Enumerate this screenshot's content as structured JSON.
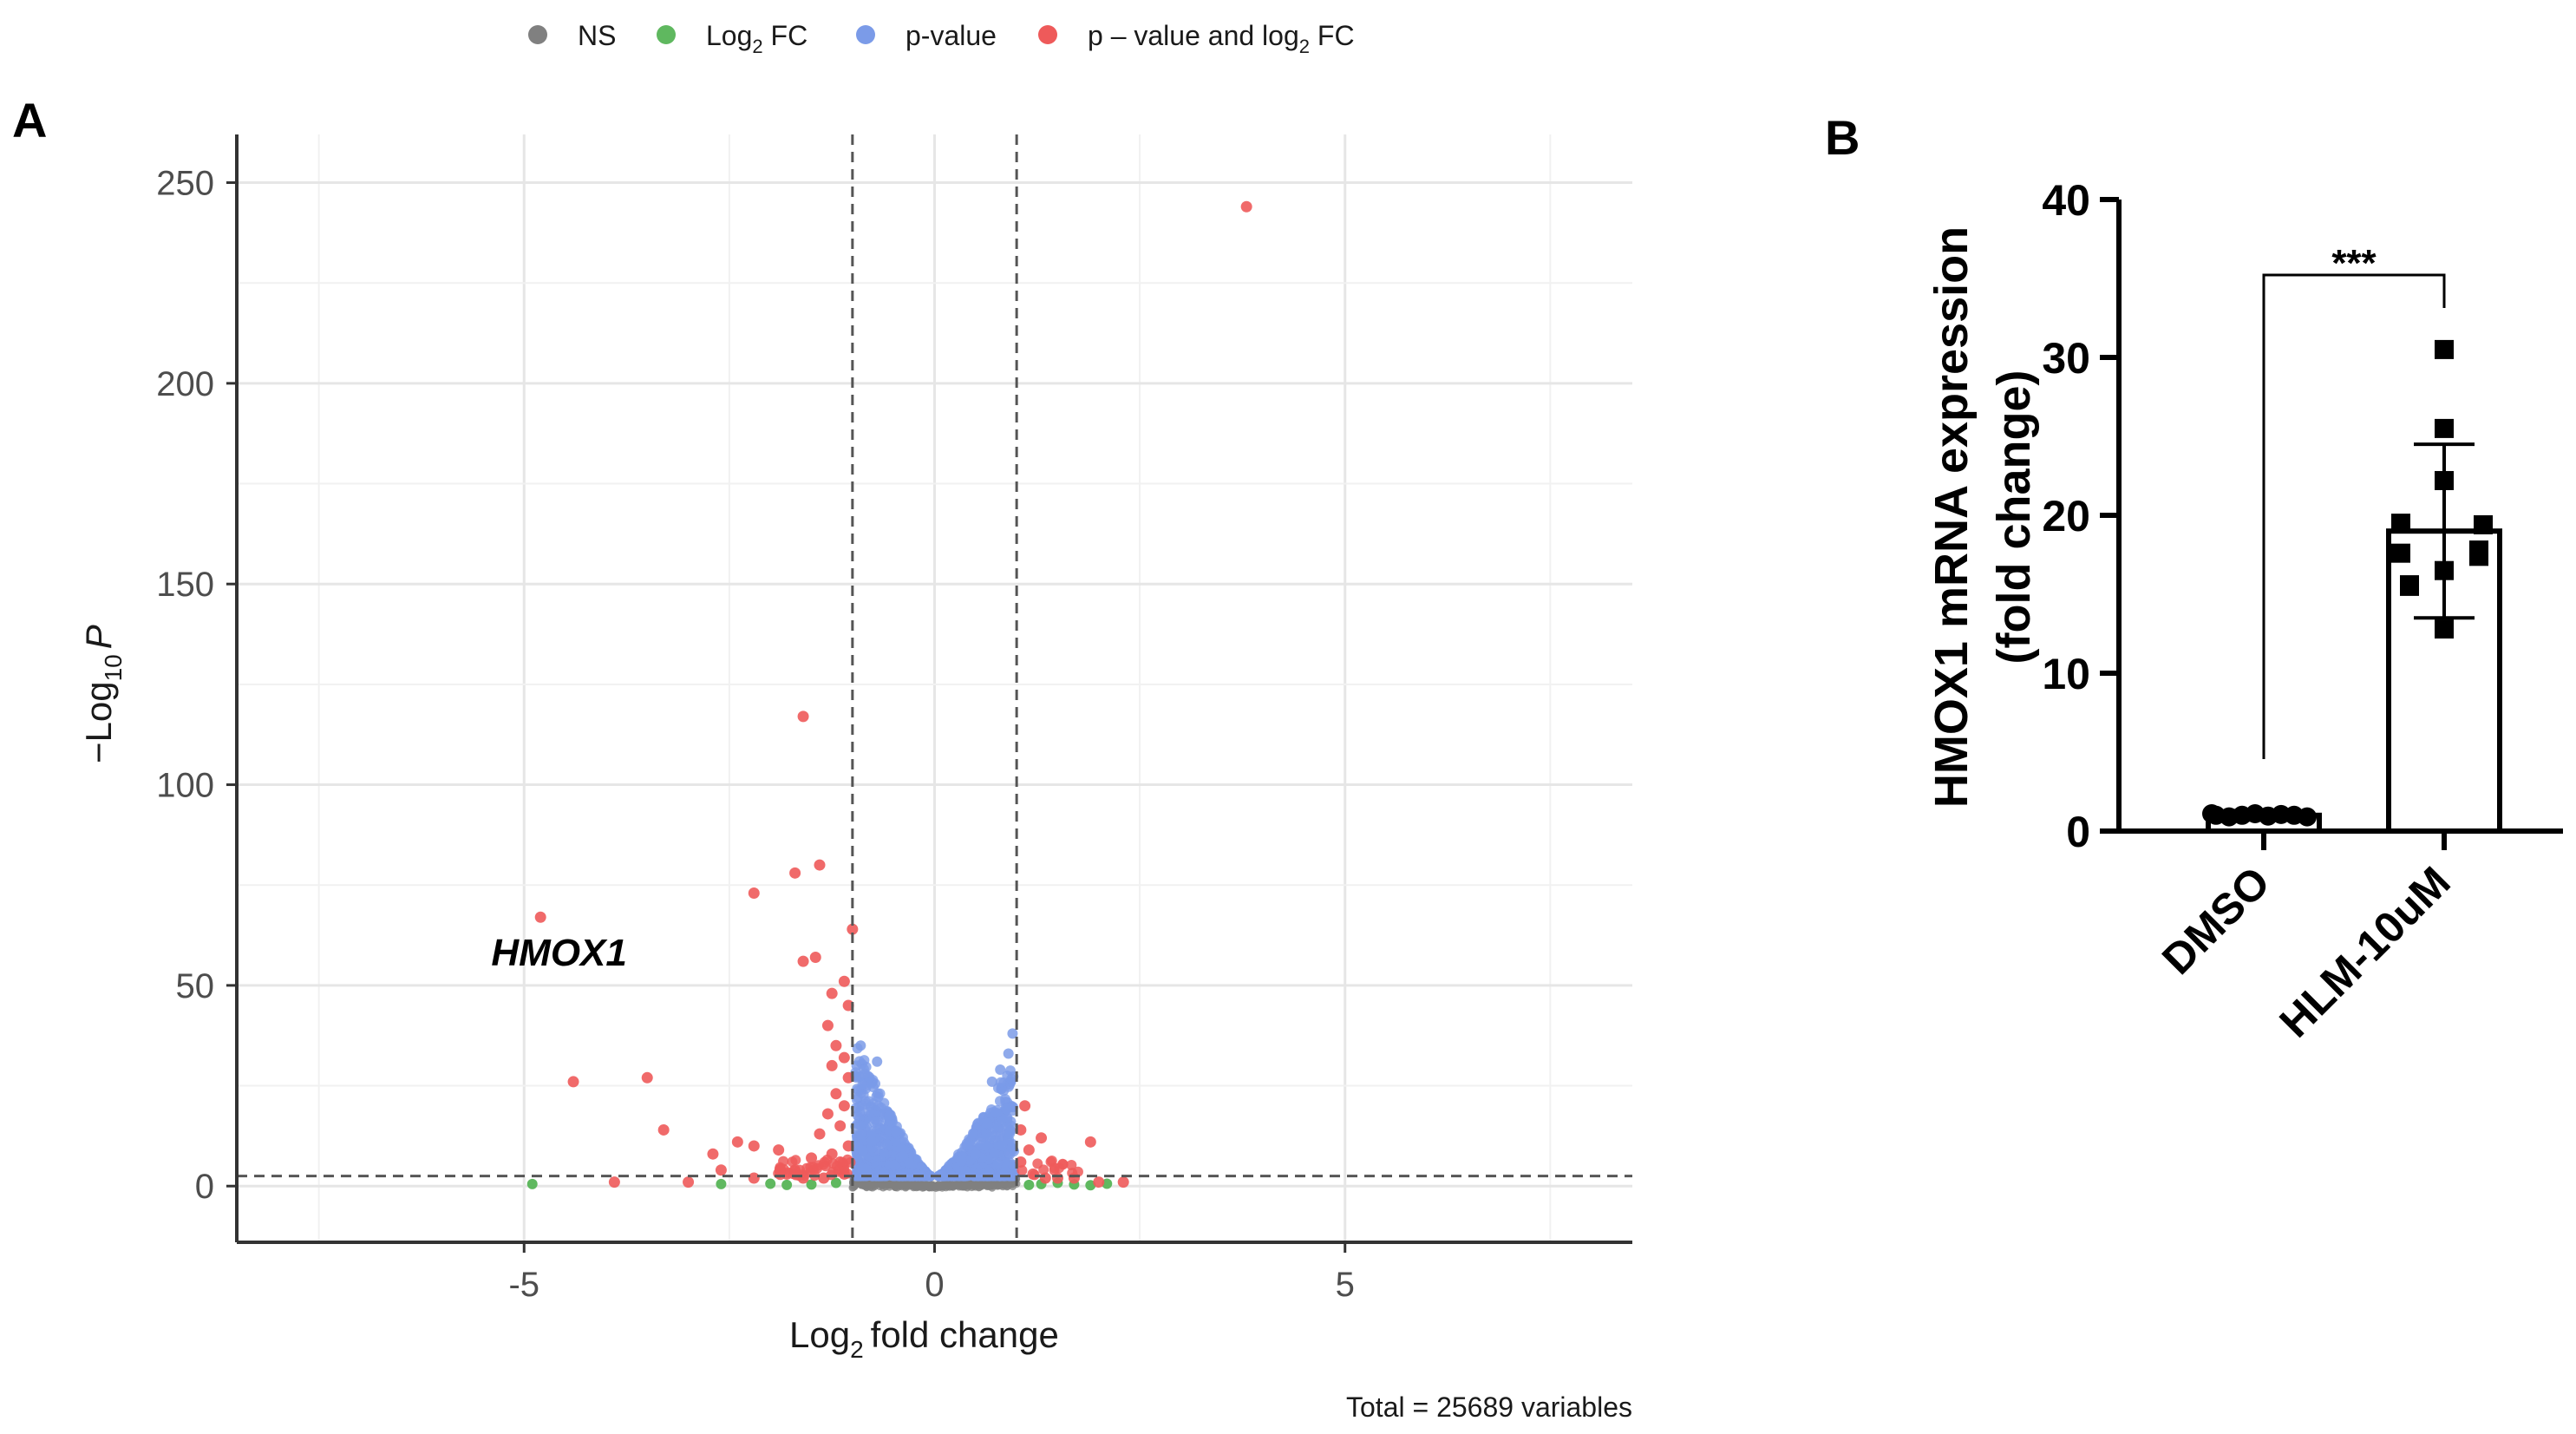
{
  "chart_data": [
    {
      "type": "scatter",
      "panel_label": "A",
      "title": "",
      "xlabel_main": "Log",
      "xlabel_sub": "2",
      "xlabel_tail": "fold change",
      "ylabel_minus": "−Log",
      "ylabel_sub": "10",
      "ylabel_p": "P",
      "xlim": [
        -8.5,
        8.5
      ],
      "ylim": [
        -14,
        262
      ],
      "xticks": [
        -5,
        0,
        5
      ],
      "xtick_labels": [
        "-5",
        "0",
        "5"
      ],
      "yticks": [
        0,
        50,
        100,
        150,
        200,
        250
      ],
      "ytick_labels": [
        "0",
        "50",
        "100",
        "150",
        "200",
        "250"
      ],
      "fc_cutoff": 1,
      "p_cutoff_log": 2.5,
      "legend": [
        {
          "key": "ns",
          "label": "NS",
          "color": "#808080"
        },
        {
          "key": "fc",
          "label": "Log",
          "sub": "2",
          "tail": " FC",
          "color": "#5fb85f"
        },
        {
          "key": "pv",
          "label": "p-value",
          "color": "#7b9be8"
        },
        {
          "key": "both",
          "label": "p – value and log",
          "sub": "2",
          "tail": " FC",
          "color": "#ee5a5a"
        }
      ],
      "annotation": {
        "text": "HMOX1",
        "x": -5.4,
        "y": 55
      },
      "caption": "Total = 25689 variables",
      "red_points": [
        [
          3.8,
          244
        ],
        [
          -1.6,
          117
        ],
        [
          -1.4,
          80
        ],
        [
          -1.7,
          78
        ],
        [
          -2.2,
          73
        ],
        [
          -4.8,
          67
        ],
        [
          -1.0,
          64
        ],
        [
          -1.6,
          56
        ],
        [
          -1.45,
          57
        ],
        [
          -1.1,
          51
        ],
        [
          -1.25,
          48
        ],
        [
          -1.05,
          45
        ],
        [
          -1.3,
          40
        ],
        [
          -1.2,
          35
        ],
        [
          -1.1,
          32
        ],
        [
          -1.25,
          30
        ],
        [
          -1.05,
          27
        ],
        [
          -3.5,
          27
        ],
        [
          -4.4,
          26
        ],
        [
          -1.2,
          23
        ],
        [
          -1.1,
          20
        ],
        [
          -1.3,
          18
        ],
        [
          -1.15,
          15
        ],
        [
          -3.3,
          14
        ],
        [
          -1.4,
          13
        ],
        [
          -2.4,
          11
        ],
        [
          -2.2,
          10
        ],
        [
          -1.05,
          10
        ],
        [
          -1.9,
          9
        ],
        [
          -1.25,
          8
        ],
        [
          -2.7,
          8
        ],
        [
          -1.5,
          7
        ],
        [
          -1.15,
          6
        ],
        [
          -2.6,
          4
        ],
        [
          -1.7,
          4
        ],
        [
          -3.9,
          1
        ],
        [
          -3.0,
          1
        ],
        [
          -2.2,
          2
        ],
        [
          -1.1,
          3
        ],
        [
          -1.35,
          2
        ],
        [
          -1.6,
          2
        ],
        [
          -1.8,
          3
        ],
        [
          1.1,
          20
        ],
        [
          1.05,
          14
        ],
        [
          1.3,
          12
        ],
        [
          1.15,
          9
        ],
        [
          1.9,
          11
        ],
        [
          1.05,
          6
        ],
        [
          1.5,
          2
        ],
        [
          1.7,
          2
        ],
        [
          2.0,
          1
        ],
        [
          2.3,
          1
        ],
        [
          1.2,
          3
        ],
        [
          1.35,
          2
        ]
      ],
      "green_points": [
        [
          -4.9,
          0.5
        ],
        [
          -2.6,
          0.5
        ],
        [
          -2.0,
          0.6
        ],
        [
          -1.5,
          0.4
        ],
        [
          -1.2,
          0.8
        ],
        [
          -1.8,
          0.3
        ],
        [
          1.3,
          0.5
        ],
        [
          1.7,
          0.4
        ],
        [
          2.1,
          0.6
        ],
        [
          1.5,
          0.8
        ],
        [
          1.15,
          0.3
        ],
        [
          1.9,
          0.2
        ]
      ]
    },
    {
      "type": "bar",
      "panel_label": "B",
      "ylabel_line1": "HMOX1 mRNA expression",
      "ylabel_line2": "(fold change)",
      "ylim": [
        0,
        40
      ],
      "yticks": [
        0,
        10,
        20,
        30,
        40
      ],
      "ytick_labels": [
        "0",
        "10",
        "20",
        "30",
        "40"
      ],
      "categories": [
        "DMSO",
        "HLM-10uM"
      ],
      "values": [
        1,
        19
      ],
      "error": [
        0.3,
        5.5
      ],
      "points": [
        [
          1,
          0.9,
          1.0,
          1.1,
          0.95,
          1.05,
          1.0,
          0.9,
          1.1
        ],
        [
          30.5,
          25.5,
          22.2,
          19.5,
          17.6,
          17.8,
          16.5,
          15.5,
          12.8
        ]
      ],
      "significance": "***"
    }
  ]
}
